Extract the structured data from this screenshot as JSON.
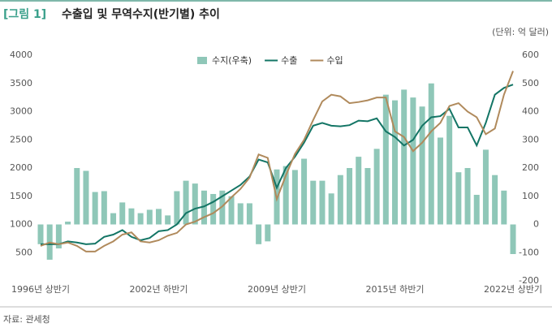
{
  "chart_data": {
    "type": "combo",
    "figure_label": "[그림 1]",
    "title": "수출입 및 무역수지(반기별) 추이",
    "unit_label": "(단위: 억 달러)",
    "source": "자료: 관세청",
    "categories": [
      "1996년 상반기",
      null,
      null,
      null,
      null,
      null,
      null,
      null,
      null,
      null,
      null,
      null,
      null,
      "2002년 하반기",
      null,
      null,
      null,
      null,
      null,
      null,
      null,
      null,
      null,
      null,
      null,
      null,
      "2009년 상반기",
      null,
      null,
      null,
      null,
      null,
      null,
      null,
      null,
      null,
      null,
      null,
      null,
      "2015년 하반기",
      null,
      null,
      null,
      null,
      null,
      null,
      null,
      null,
      null,
      null,
      null,
      null,
      "2022년 상반기"
    ],
    "series": [
      {
        "name": "수지(우축)",
        "type": "bar",
        "axis": "y2",
        "color": "#8fc7b8",
        "values": [
          -70,
          -125,
          -85,
          10,
          200,
          190,
          115,
          118,
          40,
          78,
          57,
          40,
          52,
          55,
          32,
          118,
          155,
          145,
          120,
          108,
          120,
          100,
          75,
          75,
          -70,
          -60,
          195,
          207,
          193,
          233,
          155,
          155,
          110,
          175,
          200,
          240,
          200,
          268,
          460,
          440,
          478,
          450,
          418,
          500,
          308,
          385,
          185,
          200,
          105,
          265,
          175,
          120,
          -105
        ]
      },
      {
        "name": "수출",
        "type": "line",
        "color": "#137565",
        "values": [
          650,
          650,
          650,
          700,
          680,
          650,
          660,
          780,
          820,
          900,
          780,
          720,
          760,
          880,
          900,
          1000,
          1200,
          1280,
          1320,
          1400,
          1500,
          1600,
          1700,
          1850,
          2150,
          2100,
          1650,
          2000,
          2200,
          2450,
          2750,
          2800,
          2750,
          2740,
          2760,
          2840,
          2830,
          2880,
          2650,
          2550,
          2400,
          2500,
          2750,
          2900,
          2920,
          3050,
          2720,
          2720,
          2400,
          2800,
          3300,
          3420,
          3480
        ]
      },
      {
        "name": "수입",
        "type": "line",
        "color": "#b08a5c",
        "values": [
          620,
          680,
          650,
          680,
          620,
          520,
          520,
          620,
          700,
          820,
          860,
          700,
          680,
          720,
          800,
          850,
          1000,
          1050,
          1130,
          1200,
          1320,
          1480,
          1630,
          1830,
          2240,
          2180,
          1450,
          1870,
          2250,
          2500,
          2850,
          3180,
          3300,
          3270,
          3150,
          3170,
          3200,
          3250,
          3250,
          2650,
          2550,
          2300,
          2450,
          2650,
          2800,
          3100,
          3150,
          3000,
          2900,
          2600,
          2700,
          3300,
          3720
        ]
      }
    ],
    "ylim": [
      0,
      4000
    ],
    "yticks": [
      500,
      1000,
      1500,
      2000,
      2500,
      3000,
      3500,
      4000
    ],
    "y2lim": [
      -200,
      600
    ],
    "y2ticks": [
      -200,
      -100,
      0,
      100,
      200,
      300,
      400,
      500,
      600
    ]
  }
}
